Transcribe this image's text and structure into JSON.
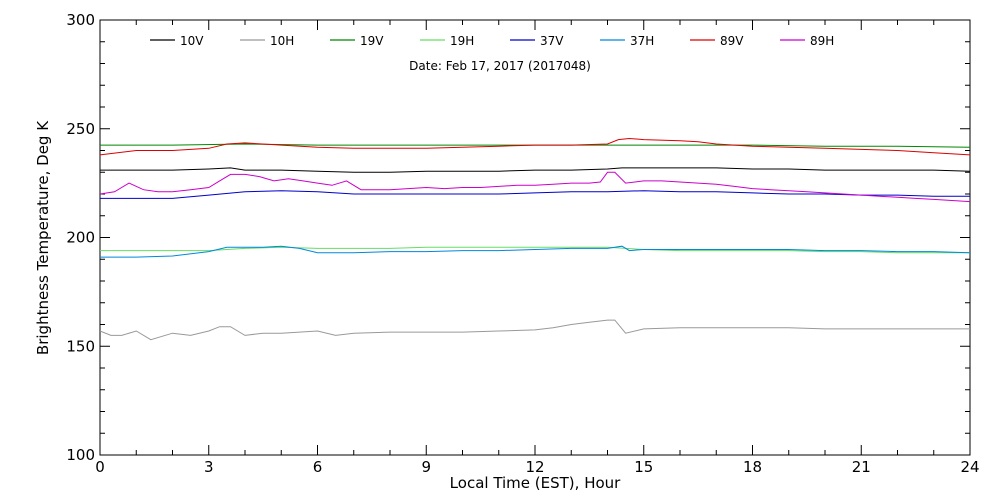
{
  "chart_data": {
    "type": "line",
    "title": "",
    "annotation": "Date: Feb 17, 2017 (2017048)",
    "xlabel": "Local Time (EST), Hour",
    "ylabel": "Brightness Temperature, Deg K",
    "xlim": [
      0,
      24
    ],
    "ylim": [
      100,
      300
    ],
    "xticks": [
      "0",
      "3",
      "6",
      "9",
      "12",
      "15",
      "18",
      "21",
      "24"
    ],
    "yticks": [
      "100",
      "150",
      "200",
      "250",
      "300"
    ],
    "grid": false,
    "legend_position": "top",
    "series": [
      {
        "name": "10V",
        "color": "#000000",
        "x": [
          0,
          1,
          2,
          3,
          3.6,
          4,
          5,
          6,
          7,
          8,
          9,
          10,
          11,
          12,
          13,
          14,
          14.4,
          15,
          16,
          17,
          18,
          19,
          20,
          21,
          22,
          23,
          24
        ],
        "y": [
          231,
          231,
          231,
          231.5,
          232,
          231,
          231,
          230.5,
          230,
          230,
          230.5,
          230.5,
          230.5,
          231,
          231,
          231.5,
          232,
          232,
          232,
          232,
          231.5,
          231.5,
          231,
          231,
          231,
          231,
          230.5
        ]
      },
      {
        "name": "10H",
        "color": "#999999",
        "x": [
          0,
          0.3,
          0.6,
          1,
          1.4,
          2,
          2.5,
          3,
          3.3,
          3.6,
          4,
          4.5,
          5,
          5.5,
          6,
          6.5,
          7,
          8,
          9,
          10,
          11,
          12,
          12.5,
          13,
          13.5,
          14,
          14.2,
          14.5,
          15,
          16,
          17,
          18,
          19,
          20,
          21,
          22,
          23,
          24
        ],
        "y": [
          157,
          155,
          155,
          157,
          153,
          156,
          155,
          157,
          159,
          159,
          155,
          156,
          156,
          156.5,
          157,
          155,
          156,
          156.5,
          156.5,
          156.5,
          157,
          157.5,
          158.5,
          160,
          161,
          162,
          162,
          156,
          158,
          158.5,
          158.5,
          158.5,
          158.5,
          158,
          158,
          158,
          158,
          158
        ]
      },
      {
        "name": "19V",
        "color": "#008800",
        "x": [
          0,
          2,
          4,
          6,
          8,
          10,
          12,
          14,
          16,
          18,
          20,
          22,
          24
        ],
        "y": [
          242.5,
          242.5,
          243,
          242.5,
          242.5,
          242.5,
          242.5,
          242.5,
          242.5,
          242.5,
          242,
          242,
          241.5
        ]
      },
      {
        "name": "19H",
        "color": "#66dd66",
        "x": [
          0,
          1,
          2,
          3,
          4,
          5,
          6,
          7,
          8,
          9,
          10,
          11,
          12,
          13,
          14,
          15,
          16,
          17,
          18,
          19,
          20,
          21,
          22,
          23,
          24
        ],
        "y": [
          194,
          194,
          194,
          194,
          195,
          195.5,
          195,
          195,
          195,
          195.5,
          195.5,
          195.5,
          195.5,
          195.5,
          195.5,
          194.5,
          194,
          194,
          194,
          194,
          193.5,
          193.5,
          193,
          193,
          193
        ]
      },
      {
        "name": "37V",
        "color": "#0000cc",
        "x": [
          0,
          1,
          2,
          3,
          4,
          5,
          6,
          7,
          8,
          9,
          10,
          11,
          12,
          13,
          14,
          15,
          16,
          17,
          18,
          19,
          20,
          21,
          22,
          23,
          24
        ],
        "y": [
          218,
          218,
          218,
          219.5,
          221,
          221.5,
          221,
          220,
          220,
          220,
          220,
          220,
          220.5,
          221,
          221,
          221.5,
          221,
          221,
          220.5,
          220,
          220,
          219.5,
          219.5,
          219,
          219
        ]
      },
      {
        "name": "37H",
        "color": "#0088dd",
        "x": [
          0,
          1,
          2,
          3,
          3.5,
          4,
          4.5,
          5,
          5.5,
          6,
          7,
          8,
          9,
          10,
          11,
          12,
          13,
          14,
          14.4,
          14.6,
          15,
          16,
          17,
          18,
          19,
          20,
          21,
          22,
          23,
          24
        ],
        "y": [
          191,
          191,
          191.5,
          193.5,
          195.5,
          195.5,
          195.5,
          196,
          195,
          193,
          193,
          193.5,
          193.5,
          194,
          194,
          194.5,
          195,
          195,
          196,
          194,
          194.5,
          194.5,
          194.5,
          194.5,
          194.5,
          194,
          194,
          193.5,
          193.5,
          193
        ]
      },
      {
        "name": "89V",
        "color": "#dd0000",
        "x": [
          0,
          1,
          2,
          3,
          3.5,
          4,
          5,
          6,
          7,
          8,
          9,
          10,
          11,
          12,
          13,
          14,
          14.3,
          14.6,
          15,
          16,
          16.5,
          17,
          18,
          19,
          20,
          21,
          22,
          23,
          24
        ],
        "y": [
          238,
          240,
          240,
          241,
          243,
          243.5,
          242.5,
          241.5,
          241,
          241,
          241,
          241.5,
          242,
          242.5,
          242.5,
          243,
          245,
          245.5,
          245,
          244.5,
          244,
          243,
          242,
          241.5,
          241,
          240.5,
          240,
          239,
          238
        ]
      },
      {
        "name": "89H",
        "color": "#cc00cc",
        "x": [
          0,
          0.4,
          0.8,
          1.2,
          1.6,
          2,
          2.5,
          3,
          3.3,
          3.6,
          4,
          4.4,
          4.8,
          5.2,
          5.6,
          6,
          6.4,
          6.8,
          7.2,
          7.6,
          8,
          8.5,
          9,
          9.5,
          10,
          10.5,
          11,
          11.5,
          12,
          12.5,
          13,
          13.5,
          13.8,
          14,
          14.2,
          14.5,
          15,
          15.5,
          16,
          16.5,
          17,
          17.5,
          18,
          18.5,
          19,
          19.5,
          20,
          20.5,
          21,
          21.5,
          22,
          22.5,
          23,
          23.5,
          24
        ],
        "y": [
          220,
          221,
          225,
          222,
          221,
          221,
          222,
          223,
          226,
          229,
          229,
          228,
          226,
          227,
          226,
          225,
          224,
          226,
          222,
          222,
          222,
          222.5,
          223,
          222.5,
          223,
          223,
          223.5,
          224,
          224,
          224.5,
          225,
          225,
          225.5,
          230,
          230,
          225,
          226,
          226,
          225.5,
          225,
          224.5,
          223.5,
          222.5,
          222,
          221.5,
          221,
          220.5,
          220,
          219.5,
          219,
          218.5,
          218,
          217.5,
          217,
          216.5
        ]
      }
    ]
  }
}
